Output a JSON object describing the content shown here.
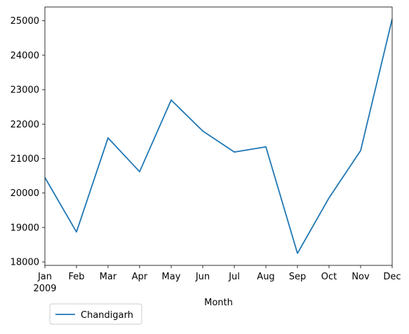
{
  "chart_data": {
    "type": "line",
    "title": "",
    "xlabel": "Month",
    "ylabel": "",
    "x_tick_labels": [
      "Jan",
      "Feb",
      "Mar",
      "Apr",
      "May",
      "Jun",
      "Jul",
      "Aug",
      "Sep",
      "Oct",
      "Nov",
      "Dec"
    ],
    "x_year_label": "2009",
    "categories": [
      "2009-01",
      "2009-02",
      "2009-03",
      "2009-04",
      "2009-05",
      "2009-06",
      "2009-07",
      "2009-08",
      "2009-09",
      "2009-10",
      "2009-11",
      "2009-12"
    ],
    "ylim": [
      17900,
      25400
    ],
    "y_ticks": [
      18000,
      19000,
      20000,
      21000,
      22000,
      23000,
      24000,
      25000
    ],
    "grid": false,
    "legend_position": "bottom-left, outside plot",
    "series": [
      {
        "name": "Chandigarh",
        "color": "#1f77b4",
        "values": [
          20450,
          18870,
          21600,
          20620,
          22700,
          21800,
          21190,
          21340,
          18250,
          19860,
          21230,
          25050
        ]
      }
    ]
  }
}
